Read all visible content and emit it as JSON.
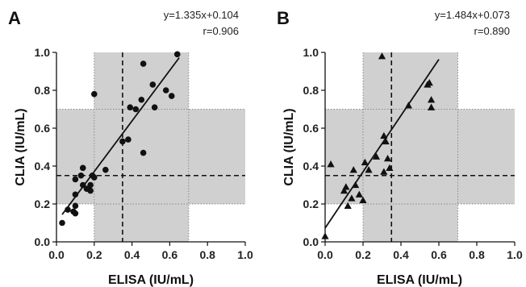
{
  "chart_data": [
    {
      "panel": "A",
      "type": "scatter",
      "marker": "circle",
      "equation": "y=1.335x+0.104",
      "r_label": "r=0.906",
      "xlabel": "ELISA (IU/mL)",
      "ylabel": "CLIA (IU/mL)",
      "xlim": [
        0,
        1.0
      ],
      "ylim": [
        0,
        1.0
      ],
      "x_ticks": [
        "0.0",
        "0.2",
        "0.4",
        "0.6",
        "0.8",
        "1.0"
      ],
      "y_ticks": [
        "0.0",
        "0.2",
        "0.4",
        "0.6",
        "0.8",
        "1.0"
      ],
      "fit": {
        "slope": 1.335,
        "intercept": 0.104,
        "x_range": [
          0.03,
          0.65
        ]
      },
      "cutoff": {
        "x": 0.35,
        "y": 0.35
      },
      "grey_zone_x": [
        0.2,
        0.7
      ],
      "grey_zone_y": [
        0.2,
        0.7
      ],
      "points": [
        [
          0.03,
          0.1
        ],
        [
          0.06,
          0.17
        ],
        [
          0.09,
          0.16
        ],
        [
          0.1,
          0.15
        ],
        [
          0.1,
          0.19
        ],
        [
          0.1,
          0.25
        ],
        [
          0.1,
          0.33
        ],
        [
          0.13,
          0.35
        ],
        [
          0.14,
          0.39
        ],
        [
          0.14,
          0.3
        ],
        [
          0.16,
          0.28
        ],
        [
          0.18,
          0.27
        ],
        [
          0.18,
          0.3
        ],
        [
          0.19,
          0.35
        ],
        [
          0.2,
          0.34
        ],
        [
          0.2,
          0.78
        ],
        [
          0.26,
          0.38
        ],
        [
          0.35,
          0.53
        ],
        [
          0.38,
          0.54
        ],
        [
          0.39,
          0.71
        ],
        [
          0.42,
          0.7
        ],
        [
          0.45,
          0.75
        ],
        [
          0.46,
          0.94
        ],
        [
          0.46,
          0.47
        ],
        [
          0.51,
          0.83
        ],
        [
          0.52,
          0.71
        ],
        [
          0.58,
          0.8
        ],
        [
          0.61,
          0.77
        ],
        [
          0.64,
          0.99
        ]
      ]
    },
    {
      "panel": "B",
      "type": "scatter",
      "marker": "triangle",
      "equation": "y=1.484x+0.073",
      "r_label": "r=0.890",
      "xlabel": "ELISA (IU/mL)",
      "ylabel": "CLIA (IU/mL)",
      "xlim": [
        0,
        1.0
      ],
      "ylim": [
        0,
        1.0
      ],
      "x_ticks": [
        "0.0",
        "0.2",
        "0.4",
        "0.6",
        "0.8",
        "1.0"
      ],
      "y_ticks": [
        "0.0",
        "0.2",
        "0.4",
        "0.6",
        "0.8",
        "1.0"
      ],
      "fit": {
        "slope": 1.484,
        "intercept": 0.073,
        "x_range": [
          0.0,
          0.6
        ]
      },
      "cutoff": {
        "x": 0.35,
        "y": 0.35
      },
      "grey_zone_x": [
        0.2,
        0.7
      ],
      "grey_zone_y": [
        0.2,
        0.7
      ],
      "points": [
        [
          0.0,
          0.03
        ],
        [
          0.03,
          0.41
        ],
        [
          0.1,
          0.27
        ],
        [
          0.11,
          0.29
        ],
        [
          0.12,
          0.19
        ],
        [
          0.14,
          0.23
        ],
        [
          0.15,
          0.38
        ],
        [
          0.16,
          0.3
        ],
        [
          0.18,
          0.25
        ],
        [
          0.2,
          0.22
        ],
        [
          0.21,
          0.42
        ],
        [
          0.23,
          0.38
        ],
        [
          0.27,
          0.45
        ],
        [
          0.3,
          0.98
        ],
        [
          0.31,
          0.37
        ],
        [
          0.31,
          0.56
        ],
        [
          0.32,
          0.53
        ],
        [
          0.33,
          0.44
        ],
        [
          0.34,
          0.39
        ],
        [
          0.44,
          0.72
        ],
        [
          0.54,
          0.83
        ],
        [
          0.55,
          0.84
        ],
        [
          0.56,
          0.75
        ],
        [
          0.56,
          0.71
        ]
      ]
    }
  ]
}
